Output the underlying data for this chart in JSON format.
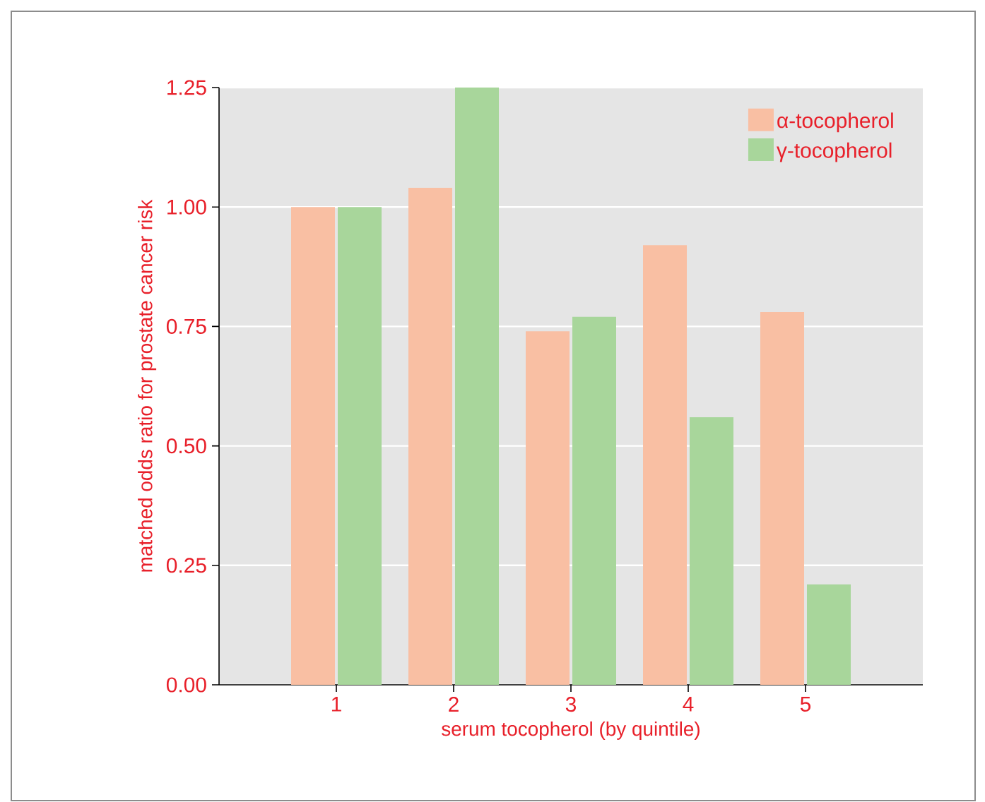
{
  "chart_data": {
    "type": "bar",
    "xlabel": "serum tocopherol (by quintile)",
    "ylabel": "matched odds ratio for prostate cancer risk",
    "categories": [
      "1",
      "2",
      "3",
      "4",
      "5"
    ],
    "series": [
      {
        "name": "α-tocopherol",
        "color": "#f9bfa3",
        "values": [
          1.0,
          1.04,
          0.74,
          0.92,
          0.78
        ]
      },
      {
        "name": "γ-tocopherol",
        "color": "#a8d69b",
        "values": [
          1.0,
          1.25,
          0.77,
          0.56,
          0.21
        ]
      }
    ],
    "ylim": [
      0,
      1.25
    ],
    "yticks": [
      {
        "value": 0,
        "label": "0.00"
      },
      {
        "value": 0.25,
        "label": "0.25"
      },
      {
        "value": 0.5,
        "label": "0.50"
      },
      {
        "value": 0.75,
        "label": "0.75"
      },
      {
        "value": 1,
        "label": "1.00"
      },
      {
        "value": 1.25,
        "label": "1.25"
      }
    ],
    "grid": "y",
    "legend": "top right"
  }
}
